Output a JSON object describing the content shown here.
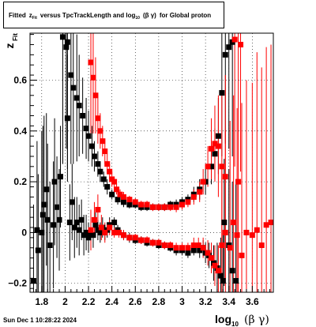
{
  "title": {
    "prefix": "Fitted",
    "z": "z",
    "z_sub": "Fit",
    "mid": "versus TpcTrackLength and log",
    "log_sub": "10",
    "beta_gamma": "(β  γ)",
    "suffix": "for Global proton"
  },
  "footer": {
    "date": "Sun Dec  1 10:28:22 2024"
  },
  "chart_data": {
    "type": "scatter",
    "title": "",
    "xlabel": "log10 (β γ)",
    "xlabel_main": "log",
    "xlabel_sub": "10",
    "xlabel_tail": "(β γ)",
    "ylabel": "zFit",
    "ylabel_main": "z",
    "ylabel_sub": "Fit",
    "xlim": [
      1.7,
      3.78
    ],
    "ylim": [
      -0.235,
      0.785
    ],
    "x_ticks": [
      1.8,
      2.0,
      2.2,
      2.4,
      2.6,
      2.8,
      3.0,
      3.2,
      3.4,
      3.6
    ],
    "x_tick_labels": [
      "1.8",
      "2",
      "2.2",
      "2.4",
      "2.6",
      "2.8",
      "3",
      "3.2",
      "3.4",
      "3.6"
    ],
    "y_ticks": [
      -0.2,
      0.0,
      0.2,
      0.4,
      0.6
    ],
    "y_tick_labels": [
      "−0.2",
      "0",
      "0.2",
      "0.4",
      "0.6"
    ],
    "grid": true,
    "legend": "none",
    "colors": {
      "black_series": "#000000",
      "red_series": "#ff0000"
    },
    "series": [
      {
        "color": "#000000",
        "points": [
          {
            "x": 1.73,
            "y": -0.19,
            "e": 0.3
          },
          {
            "x": 1.76,
            "y": 0.01,
            "e": 0.35
          },
          {
            "x": 1.77,
            "y": -0.07,
            "e": 0.3
          },
          {
            "x": 1.8,
            "y": 0.0,
            "e": 0.4
          },
          {
            "x": 1.81,
            "y": 0.07,
            "e": 0.35
          },
          {
            "x": 1.82,
            "y": 0.11,
            "e": 0.35
          },
          {
            "x": 1.84,
            "y": 0.17,
            "e": 0.3
          },
          {
            "x": 1.85,
            "y": 0.05,
            "e": 0.3
          },
          {
            "x": 1.87,
            "y": -0.05,
            "e": 0.25
          },
          {
            "x": 1.9,
            "y": 0.03,
            "e": 0.25
          },
          {
            "x": 1.91,
            "y": 0.2,
            "e": 0.25
          },
          {
            "x": 1.93,
            "y": 0.1,
            "e": 0.2
          },
          {
            "x": 1.95,
            "y": 0.05,
            "e": 0.2
          },
          {
            "x": 1.96,
            "y": 0.22,
            "e": 0.2
          },
          {
            "x": 1.98,
            "y": 0.77,
            "e": 0.5
          },
          {
            "x": 2.01,
            "y": 0.73,
            "e": 0.4
          },
          {
            "x": 2.02,
            "y": 0.45,
            "e": 0.25
          },
          {
            "x": 2.04,
            "y": 0.04,
            "e": 0.15
          },
          {
            "x": 2.06,
            "y": 0.12,
            "e": 0.15
          },
          {
            "x": 2.08,
            "y": 0.02,
            "e": 0.12
          },
          {
            "x": 2.1,
            "y": 0.04,
            "e": 0.1
          },
          {
            "x": 2.12,
            "y": 0.01,
            "e": 0.1
          },
          {
            "x": 2.14,
            "y": 0.05,
            "e": 0.08
          },
          {
            "x": 2.16,
            "y": -0.01,
            "e": 0.08
          },
          {
            "x": 2.18,
            "y": 0.0,
            "e": 0.07
          },
          {
            "x": 2.2,
            "y": -0.02,
            "e": 0.06
          },
          {
            "x": 2.22,
            "y": 0.0,
            "e": 0.06
          },
          {
            "x": 2.24,
            "y": -0.01,
            "e": 0.05
          },
          {
            "x": 2.26,
            "y": 0.03,
            "e": 0.05
          },
          {
            "x": 2.28,
            "y": 0.01,
            "e": 0.04
          },
          {
            "x": 2.3,
            "y": 0.0,
            "e": 0.04
          },
          {
            "x": 2.32,
            "y": 0.02,
            "e": 0.04
          },
          {
            "x": 2.34,
            "y": 0.0,
            "e": 0.03
          },
          {
            "x": 2.36,
            "y": 0.01,
            "e": 0.03
          },
          {
            "x": 2.38,
            "y": 0.03,
            "e": 0.03
          },
          {
            "x": 2.42,
            "y": 0.04,
            "e": 0.02
          },
          {
            "x": 2.45,
            "y": 0.01,
            "e": 0.02
          },
          {
            "x": 2.5,
            "y": -0.01,
            "e": 0.02
          },
          {
            "x": 2.55,
            "y": -0.02,
            "e": 0.02
          },
          {
            "x": 2.6,
            "y": -0.03,
            "e": 0.015
          },
          {
            "x": 2.65,
            "y": -0.03,
            "e": 0.015
          },
          {
            "x": 2.7,
            "y": -0.04,
            "e": 0.015
          },
          {
            "x": 2.75,
            "y": -0.04,
            "e": 0.015
          },
          {
            "x": 2.8,
            "y": -0.05,
            "e": 0.015
          },
          {
            "x": 2.85,
            "y": -0.05,
            "e": 0.015
          },
          {
            "x": 2.9,
            "y": -0.06,
            "e": 0.015
          },
          {
            "x": 2.95,
            "y": -0.07,
            "e": 0.02
          },
          {
            "x": 3.0,
            "y": -0.07,
            "e": 0.02
          },
          {
            "x": 3.05,
            "y": -0.08,
            "e": 0.02
          },
          {
            "x": 3.1,
            "y": -0.07,
            "e": 0.02
          },
          {
            "x": 3.15,
            "y": -0.07,
            "e": 0.03
          },
          {
            "x": 3.18,
            "y": -0.06,
            "e": 0.03
          },
          {
            "x": 3.2,
            "y": -0.08,
            "e": 0.04
          },
          {
            "x": 3.23,
            "y": -0.09,
            "e": 0.05
          },
          {
            "x": 3.25,
            "y": -0.1,
            "e": 0.06
          },
          {
            "x": 3.27,
            "y": -0.12,
            "e": 0.07
          },
          {
            "x": 3.3,
            "y": -0.14,
            "e": 0.1
          },
          {
            "x": 3.33,
            "y": -0.17,
            "e": 0.15
          },
          {
            "x": 3.35,
            "y": -0.19,
            "e": 0.2
          },
          {
            "x": 2.02,
            "y": 0.75,
            "e": 0.5
          },
          {
            "x": 2.05,
            "y": 0.62,
            "e": 0.35
          },
          {
            "x": 2.07,
            "y": 0.57,
            "e": 0.3
          },
          {
            "x": 2.1,
            "y": 0.53,
            "e": 0.25
          },
          {
            "x": 2.12,
            "y": 0.5,
            "e": 0.2
          },
          {
            "x": 2.15,
            "y": 0.46,
            "e": 0.15
          },
          {
            "x": 2.18,
            "y": 0.41,
            "e": 0.12
          },
          {
            "x": 2.2,
            "y": 0.38,
            "e": 0.1
          },
          {
            "x": 2.23,
            "y": 0.34,
            "e": 0.08
          },
          {
            "x": 2.25,
            "y": 0.3,
            "e": 0.06
          },
          {
            "x": 2.28,
            "y": 0.27,
            "e": 0.05
          },
          {
            "x": 2.3,
            "y": 0.24,
            "e": 0.04
          },
          {
            "x": 2.33,
            "y": 0.21,
            "e": 0.03
          },
          {
            "x": 2.36,
            "y": 0.18,
            "e": 0.03
          },
          {
            "x": 2.4,
            "y": 0.15,
            "e": 0.02
          },
          {
            "x": 2.45,
            "y": 0.13,
            "e": 0.02
          },
          {
            "x": 2.5,
            "y": 0.12,
            "e": 0.02
          },
          {
            "x": 2.55,
            "y": 0.11,
            "e": 0.015
          },
          {
            "x": 2.6,
            "y": 0.11,
            "e": 0.015
          },
          {
            "x": 2.65,
            "y": 0.1,
            "e": 0.015
          },
          {
            "x": 2.7,
            "y": 0.1,
            "e": 0.015
          },
          {
            "x": 2.75,
            "y": 0.1,
            "e": 0.015
          },
          {
            "x": 2.8,
            "y": 0.1,
            "e": 0.015
          },
          {
            "x": 2.85,
            "y": 0.1,
            "e": 0.015
          },
          {
            "x": 2.9,
            "y": 0.11,
            "e": 0.015
          },
          {
            "x": 2.95,
            "y": 0.11,
            "e": 0.02
          },
          {
            "x": 3.0,
            "y": 0.12,
            "e": 0.02
          },
          {
            "x": 3.05,
            "y": 0.13,
            "e": 0.02
          },
          {
            "x": 3.1,
            "y": 0.15,
            "e": 0.03
          },
          {
            "x": 3.15,
            "y": 0.17,
            "e": 0.04
          },
          {
            "x": 3.2,
            "y": 0.2,
            "e": 0.05
          },
          {
            "x": 3.25,
            "y": 0.26,
            "e": 0.07
          },
          {
            "x": 3.28,
            "y": 0.31,
            "e": 0.1
          },
          {
            "x": 3.31,
            "y": 0.38,
            "e": 0.15
          },
          {
            "x": 3.34,
            "y": 0.55,
            "e": 0.25
          },
          {
            "x": 3.37,
            "y": 0.7,
            "e": 0.35
          },
          {
            "x": 3.4,
            "y": 0.73,
            "e": 0.4
          },
          {
            "x": 3.43,
            "y": 0.75,
            "e": 0.45
          },
          {
            "x": 3.36,
            "y": 0.04,
            "e": 0.25
          },
          {
            "x": 3.4,
            "y": -0.05,
            "e": 0.3
          },
          {
            "x": 3.43,
            "y": -0.15,
            "e": 0.35
          },
          {
            "x": 3.46,
            "y": -0.19,
            "e": 0.4
          }
        ]
      },
      {
        "color": "#ff0000",
        "points": [
          {
            "x": 2.22,
            "y": 0.01,
            "e": 0.08
          },
          {
            "x": 2.25,
            "y": 0.05,
            "e": 0.07
          },
          {
            "x": 2.28,
            "y": 0.09,
            "e": 0.06
          },
          {
            "x": 2.31,
            "y": 0.02,
            "e": 0.05
          },
          {
            "x": 2.34,
            "y": 0.0,
            "e": 0.04
          },
          {
            "x": 2.38,
            "y": 0.02,
            "e": 0.03
          },
          {
            "x": 2.42,
            "y": 0.0,
            "e": 0.02
          },
          {
            "x": 2.46,
            "y": 0.0,
            "e": 0.02
          },
          {
            "x": 2.5,
            "y": -0.01,
            "e": 0.02
          },
          {
            "x": 2.55,
            "y": -0.02,
            "e": 0.015
          },
          {
            "x": 2.6,
            "y": -0.02,
            "e": 0.015
          },
          {
            "x": 2.65,
            "y": -0.03,
            "e": 0.015
          },
          {
            "x": 2.7,
            "y": -0.03,
            "e": 0.015
          },
          {
            "x": 2.75,
            "y": -0.04,
            "e": 0.015
          },
          {
            "x": 2.8,
            "y": -0.04,
            "e": 0.015
          },
          {
            "x": 2.85,
            "y": -0.05,
            "e": 0.015
          },
          {
            "x": 2.9,
            "y": -0.05,
            "e": 0.015
          },
          {
            "x": 2.95,
            "y": -0.06,
            "e": 0.02
          },
          {
            "x": 3.0,
            "y": -0.06,
            "e": 0.02
          },
          {
            "x": 3.05,
            "y": -0.06,
            "e": 0.02
          },
          {
            "x": 3.1,
            "y": -0.05,
            "e": 0.03
          },
          {
            "x": 3.14,
            "y": -0.05,
            "e": 0.03
          },
          {
            "x": 3.18,
            "y": -0.06,
            "e": 0.04
          },
          {
            "x": 3.22,
            "y": -0.08,
            "e": 0.05
          },
          {
            "x": 3.25,
            "y": -0.1,
            "e": 0.06
          },
          {
            "x": 3.28,
            "y": -0.13,
            "e": 0.08
          },
          {
            "x": 3.31,
            "y": -0.15,
            "e": 0.1
          },
          {
            "x": 3.34,
            "y": -0.05,
            "e": 0.3
          },
          {
            "x": 3.37,
            "y": 0.0,
            "e": 0.4
          },
          {
            "x": 3.41,
            "y": -0.06,
            "e": 0.5
          },
          {
            "x": 3.44,
            "y": 0.04,
            "e": 0.5
          },
          {
            "x": 3.47,
            "y": -0.01,
            "e": 0.5
          },
          {
            "x": 3.51,
            "y": -0.09,
            "e": 0.6
          },
          {
            "x": 3.55,
            "y": 0.0,
            "e": 0.6
          },
          {
            "x": 3.6,
            "y": -0.01,
            "e": 0.6
          },
          {
            "x": 3.64,
            "y": 0.01,
            "e": 0.7
          },
          {
            "x": 3.68,
            "y": -0.05,
            "e": 0.7
          },
          {
            "x": 3.72,
            "y": 0.03,
            "e": 0.7
          },
          {
            "x": 3.76,
            "y": 0.04,
            "e": 0.7
          },
          {
            "x": 2.22,
            "y": 0.67,
            "e": 0.3
          },
          {
            "x": 2.24,
            "y": 0.61,
            "e": 0.22
          },
          {
            "x": 2.26,
            "y": 0.54,
            "e": 0.15
          },
          {
            "x": 2.28,
            "y": 0.45,
            "e": 0.1
          },
          {
            "x": 2.3,
            "y": 0.4,
            "e": 0.07
          },
          {
            "x": 2.32,
            "y": 0.36,
            "e": 0.06
          },
          {
            "x": 2.34,
            "y": 0.32,
            "e": 0.05
          },
          {
            "x": 2.36,
            "y": 0.27,
            "e": 0.04
          },
          {
            "x": 2.38,
            "y": 0.24,
            "e": 0.03
          },
          {
            "x": 2.4,
            "y": 0.21,
            "e": 0.03
          },
          {
            "x": 2.42,
            "y": 0.2,
            "e": 0.02
          },
          {
            "x": 2.44,
            "y": 0.17,
            "e": 0.02
          },
          {
            "x": 2.47,
            "y": 0.15,
            "e": 0.02
          },
          {
            "x": 2.5,
            "y": 0.14,
            "e": 0.02
          },
          {
            "x": 2.55,
            "y": 0.13,
            "e": 0.015
          },
          {
            "x": 2.6,
            "y": 0.12,
            "e": 0.015
          },
          {
            "x": 2.65,
            "y": 0.11,
            "e": 0.015
          },
          {
            "x": 2.7,
            "y": 0.11,
            "e": 0.015
          },
          {
            "x": 2.75,
            "y": 0.1,
            "e": 0.015
          },
          {
            "x": 2.8,
            "y": 0.1,
            "e": 0.015
          },
          {
            "x": 2.85,
            "y": 0.1,
            "e": 0.015
          },
          {
            "x": 2.9,
            "y": 0.1,
            "e": 0.015
          },
          {
            "x": 2.95,
            "y": 0.1,
            "e": 0.02
          },
          {
            "x": 3.0,
            "y": 0.11,
            "e": 0.02
          },
          {
            "x": 3.05,
            "y": 0.12,
            "e": 0.02
          },
          {
            "x": 3.1,
            "y": 0.14,
            "e": 0.03
          },
          {
            "x": 3.15,
            "y": 0.16,
            "e": 0.04
          },
          {
            "x": 3.18,
            "y": 0.2,
            "e": 0.05
          },
          {
            "x": 3.22,
            "y": 0.26,
            "e": 0.08
          },
          {
            "x": 3.25,
            "y": 0.33,
            "e": 0.12
          },
          {
            "x": 3.28,
            "y": 0.35,
            "e": 0.15
          },
          {
            "x": 3.31,
            "y": 0.34,
            "e": 0.2
          },
          {
            "x": 3.34,
            "y": 0.26,
            "e": 0.3
          },
          {
            "x": 3.37,
            "y": 0.22,
            "e": 0.4
          },
          {
            "x": 3.45,
            "y": 0.76,
            "e": 0.5
          },
          {
            "x": 3.5,
            "y": 0.74,
            "e": 0.5
          },
          {
            "x": 3.48,
            "y": 0.2,
            "e": 0.6
          }
        ]
      }
    ]
  }
}
